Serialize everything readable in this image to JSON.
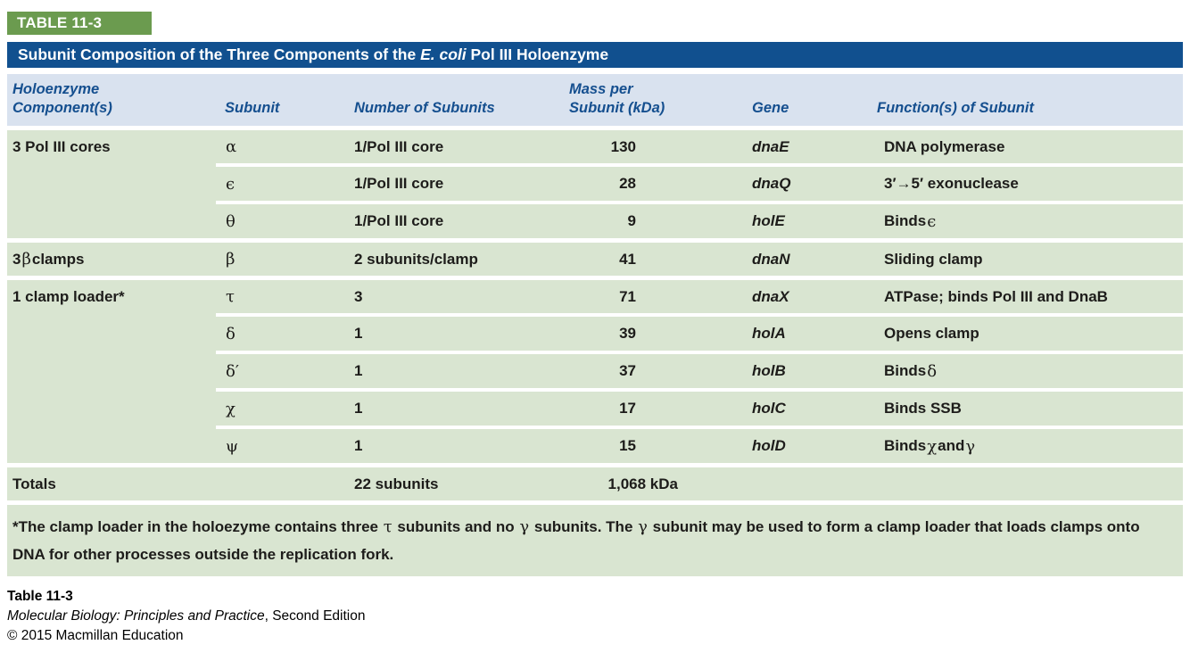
{
  "badge": {
    "label": "TABLE 11-3"
  },
  "title_bar": {
    "prefix": "Subunit Composition of the Three Components of the ",
    "italic": "E. coli",
    "suffix": " Pol III Holoenzyme"
  },
  "colors": {
    "badge_green": "#6b9b4f",
    "title_blue": "#11508f",
    "header_bg": "#d9e2ef",
    "header_text": "#154f8f",
    "row_green": "#d9e5d1",
    "body_text": "#1d1c1a"
  },
  "table": {
    "headers": {
      "component_line1": "Holoenzyme",
      "component_line2": "Component(s)",
      "subunit": "Subunit",
      "number": "Number of Subunits",
      "mass_line1": "Mass per",
      "mass_line2": "Subunit (kDa)",
      "gene": "Gene",
      "function": "Function(s) of Subunit"
    },
    "rows": [
      {
        "component": "3 Pol III cores",
        "subunit": "α",
        "number": "1/Pol III core",
        "mass": "130",
        "gene": "dnaE",
        "function": "DNA polymerase"
      },
      {
        "component": "",
        "subunit": "ϵ",
        "number": "1/Pol III core",
        "mass": "28",
        "gene": "dnaQ",
        "function": "3′→5′ exonuclease"
      },
      {
        "component": "",
        "subunit": "θ",
        "number": "1/Pol III core",
        "mass": "9",
        "gene": "holE",
        "function": "Binds ϵ"
      },
      {
        "component": "3 β clamps",
        "subunit": "β",
        "number": "2 subunits/clamp",
        "mass": "41",
        "gene": "dnaN",
        "function": "Sliding clamp"
      },
      {
        "component": "1 clamp loader*",
        "subunit": "τ",
        "number": "3",
        "mass": "71",
        "gene": "dnaX",
        "function": "ATPase; binds Pol III and DnaB"
      },
      {
        "component": "",
        "subunit": "δ",
        "number": "1",
        "mass": "39",
        "gene": "holA",
        "function": "Opens clamp"
      },
      {
        "component": "",
        "subunit": "δ′",
        "number": "1",
        "mass": "37",
        "gene": "holB",
        "function": "Binds δ"
      },
      {
        "component": "",
        "subunit": "χ",
        "number": "1",
        "mass": "17",
        "gene": "holC",
        "function": "Binds SSB"
      },
      {
        "component": "",
        "subunit": "ψ",
        "number": "1",
        "mass": "15",
        "gene": "holD",
        "function": "Binds χ and γ"
      }
    ],
    "totals": {
      "label": "Totals",
      "subunits": "22 subunits",
      "mass": "1,068 kDa"
    }
  },
  "footnote": "*The clamp loader in the holoezyme contains three τ subunits and no γ subunits. The γ subunit may be used to form a clamp loader that loads clamps onto DNA for other processes outside the replication fork.",
  "caption": {
    "figure_label": "Table 11-3",
    "book_title": "Molecular Biology: Principles and Practice",
    "edition": ", Second Edition",
    "copyright": "© 2015 Macmillan Education"
  }
}
